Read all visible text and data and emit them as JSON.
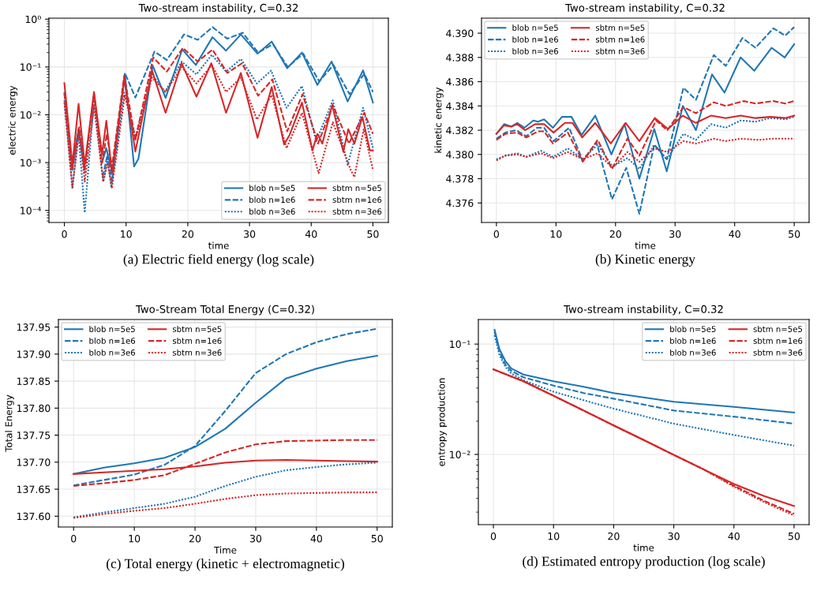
{
  "chart_data": [
    {
      "type": "line",
      "title": "Two-stream instability, C=0.32",
      "xlabel": "time",
      "ylabel": "electric energy",
      "annotations": [
        "(a) Electric field energy (log scale)"
      ],
      "log": "y",
      "grid": true,
      "legend": "lower right",
      "xlim": [
        -2.5,
        52.5
      ],
      "xticks": [
        0,
        10,
        20,
        30,
        40,
        50
      ],
      "ylim": [
        5.6e-05,
        1.05
      ],
      "yticks": [
        {
          "value": 0.0001,
          "label": "10⁻⁴"
        },
        {
          "value": 0.001,
          "label": "10⁻³"
        },
        {
          "value": 0.01,
          "label": "10⁻²"
        },
        {
          "value": 0.1,
          "label": "10⁻¹"
        },
        {
          "value": 1,
          "label": "10⁰"
        }
      ],
      "series": [
        {
          "name": "blob n=5e5",
          "color": "#1f77b4",
          "line_style": "solid",
          "x": [
            1.3,
            2.3,
            3.2,
            4.8,
            6.1,
            6.8,
            7.8,
            9.8,
            11.3,
            12,
            14.3,
            16.4,
            19.1,
            21.3,
            24,
            26.2,
            28.6,
            31.3,
            33.6,
            36.1,
            38.5,
            41,
            43.3,
            45.9,
            48.4,
            50
          ],
          "values": [
            0.0008,
            0.005,
            0.0008,
            null,
            0.001,
            0.002,
            0.0006,
            0.072,
            0.00083,
            0.0012,
            0.108,
            0.0226,
            0.234,
            0.11,
            0.42,
            0.22,
            0.48,
            0.19,
            0.34,
            0.094,
            0.2,
            0.042,
            0.13,
            0.019,
            0.085,
            0.018
          ]
        },
        {
          "name": "blob n=1e6",
          "color": "#1f77b4",
          "line_style": "dashed",
          "x": [
            0,
            1.3,
            2.3,
            3.3,
            4.8,
            6.2,
            7,
            7.7,
            9.8,
            11.5,
            14.6,
            16.6,
            19.4,
            21.6,
            24,
            26.4,
            28.9,
            31.4,
            33.8,
            36.2,
            38.7,
            41.3,
            43.6,
            46.2,
            48.6,
            50
          ],
          "values": [
            0.03,
            0.0007,
            0.005,
            0.0006,
            null,
            0.0005,
            0.0015,
            0.0004,
            0.075,
            0.023,
            0.21,
            0.14,
            0.48,
            0.37,
            0.68,
            0.39,
            0.52,
            0.2,
            0.3,
            0.1,
            0.19,
            0.05,
            0.11,
            0.027,
            0.072,
            0.03
          ]
        },
        {
          "name": "blob n=3e6",
          "color": "#1f77b4",
          "line_style": "dotted",
          "x": [
            0,
            1.3,
            2.3,
            3.3,
            4.8,
            6.3,
            7,
            7.6,
            9.7,
            11.5,
            14.2,
            16.3,
            19,
            21.4,
            23.9,
            26.2,
            28.6,
            31.2,
            33.5,
            36,
            38.5,
            40.8,
            43.5,
            45.9,
            48.4,
            50
          ],
          "values": [
            0.02,
            0.0003,
            0.004,
            9e-05,
            0.02,
            0.0004,
            0.0012,
            0.0003,
            0.029,
            0.0033,
            0.07,
            0.03,
            0.13,
            0.07,
            0.18,
            0.08,
            0.147,
            0.045,
            0.084,
            0.014,
            0.04,
            0.0028,
            0.02,
            0.0009,
            0.014,
            0.002
          ]
        },
        {
          "name": "sbtm n=5e5",
          "color": "#d62728",
          "line_style": "solid",
          "x": [
            0,
            1.3,
            2.3,
            3.3,
            4.8,
            6.1,
            6.8,
            7.7,
            9.7,
            11.5,
            14.2,
            16.4,
            19,
            21.4,
            23.8,
            26.2,
            28.6,
            31.3,
            33.6,
            35.6,
            36.5,
            38.5,
            40.2,
            41,
            41.8,
            43.4,
            45.2,
            46,
            47,
            48.3,
            49.5,
            50
          ],
          "values": [
            0.046,
            0.0009,
            0.017,
            0.0009,
            0.03,
            0.0015,
            0.0075,
            0.0006,
            0.055,
            0.0017,
            0.085,
            0.011,
            0.12,
            0.024,
            0.12,
            0.011,
            0.075,
            0.0033,
            0.038,
            0.0024,
            0.0038,
            0.018,
            0.0018,
            0.004,
            0.0025,
            0.016,
            0.0017,
            0.005,
            0.0025,
            0.009,
            0.0018,
            0.0018
          ]
        },
        {
          "name": "sbtm n=1e6",
          "color": "#d62728",
          "line_style": "dashed",
          "x": [
            0,
            1.2,
            2.4,
            3.3,
            4.8,
            6.1,
            6.9,
            7.7,
            9.7,
            11.5,
            14.4,
            16.6,
            19.2,
            21.6,
            24,
            26.4,
            28.8,
            31.4,
            33.7,
            36.1,
            38.6,
            41.1,
            43.5,
            46.1,
            48.6,
            50
          ],
          "values": [
            0.028,
            0.0007,
            0.0055,
            0.0007,
            0.028,
            0.001,
            0.004,
            0.0008,
            0.065,
            0.003,
            0.158,
            0.08,
            0.25,
            0.13,
            0.23,
            0.075,
            0.12,
            0.025,
            0.055,
            0.0045,
            0.027,
            0.0025,
            0.016,
            0.0025,
            0.011,
            0.004
          ]
        },
        {
          "name": "sbtm n=3e6",
          "color": "#d62728",
          "line_style": "dotted",
          "x": [
            0,
            1.3,
            2.4,
            3.3,
            4.8,
            6.3,
            7,
            7.7,
            9.8,
            11.5,
            14.2,
            16.4,
            19,
            21.4,
            23.9,
            26.2,
            28.6,
            31.2,
            33.6,
            36,
            38.5,
            41.2,
            43.5,
            46.4,
            47,
            48.5,
            50
          ],
          "values": [
            0.018,
            0.0003,
            0.005,
            0.0004,
            0.015,
            0.0004,
            0.001,
            0.0003,
            0.026,
            0.003,
            0.06,
            0.03,
            0.1,
            0.045,
            0.11,
            0.03,
            0.06,
            0.008,
            0.026,
            0.002,
            0.011,
            0.0006,
            0.007,
            0.0007,
            0.0005,
            0.005,
            0.0007
          ]
        }
      ]
    },
    {
      "type": "line",
      "title": "Two-stream instability, C=0.32",
      "xlabel": "time",
      "ylabel": "kinetic energy",
      "annotations": [
        "(b) Kinetic energy"
      ],
      "grid": true,
      "legend": "upper left",
      "xlim": [
        -2.5,
        52.5
      ],
      "xticks": [
        0,
        10,
        20,
        30,
        40,
        50
      ],
      "ylim": [
        4.37439,
        4.39124
      ],
      "yticks": [
        {
          "value": 4.376,
          "label": "4.376"
        },
        {
          "value": 4.378,
          "label": "4.378"
        },
        {
          "value": 4.38,
          "label": "4.380"
        },
        {
          "value": 4.382,
          "label": "4.382"
        },
        {
          "value": 4.384,
          "label": "4.384"
        },
        {
          "value": 4.386,
          "label": "4.386"
        },
        {
          "value": 4.388,
          "label": "4.388"
        },
        {
          "value": 4.39,
          "label": "4.390"
        }
      ],
      "series": [
        {
          "name": "blob n=5e5",
          "color": "#1f77b4",
          "line_style": "solid",
          "x": [
            0,
            1.3,
            2.5,
            3.5,
            4.7,
            6.2,
            7,
            8,
            9.5,
            11,
            12.6,
            14.3,
            16.6,
            19.3,
            21.5,
            24,
            26.5,
            28.6,
            31.3,
            33.5,
            36.2,
            38.3,
            41,
            43.3,
            46.2,
            48.4,
            50
          ],
          "values": [
            4.3817,
            4.3825,
            4.3823,
            4.3826,
            4.3822,
            4.3828,
            4.3827,
            4.3829,
            4.3822,
            4.3831,
            4.3831,
            4.3816,
            4.3832,
            4.38,
            4.3825,
            4.378,
            4.3821,
            4.3786,
            4.384,
            4.382,
            4.3866,
            4.3851,
            4.388,
            4.3869,
            4.3888,
            4.388,
            4.3891
          ]
        },
        {
          "name": "blob n=1e6",
          "color": "#1f77b4",
          "line_style": "dashed",
          "x": [
            0,
            1.5,
            3.3,
            5,
            6.8,
            8,
            9.6,
            12.2,
            14.5,
            16.8,
            19.4,
            21.8,
            24,
            26.5,
            28.6,
            31.4,
            33.5,
            36.5,
            38.5,
            41.3,
            43.5,
            46.5,
            48.5,
            50
          ],
          "values": [
            4.3813,
            4.3818,
            4.382,
            4.3815,
            4.3822,
            4.3822,
            4.3811,
            4.3822,
            4.3795,
            4.381,
            4.3763,
            4.3789,
            4.3751,
            4.3808,
            4.3796,
            4.3855,
            4.3845,
            4.3882,
            4.3873,
            4.3896,
            4.3888,
            4.3904,
            4.3898,
            4.3905
          ]
        },
        {
          "name": "blob n=3e6",
          "color": "#1f77b4",
          "line_style": "dotted",
          "x": [
            0,
            1.5,
            3.5,
            5,
            7.5,
            9.5,
            12,
            14.5,
            17,
            19.5,
            22,
            24,
            26.5,
            28.6,
            31.4,
            33.5,
            36,
            38.5,
            41,
            43.5,
            46,
            48.5,
            50
          ],
          "values": [
            4.3796,
            4.3799,
            4.3801,
            4.3798,
            4.3803,
            4.3798,
            4.3805,
            4.3796,
            4.3808,
            4.379,
            4.3797,
            4.3788,
            4.3808,
            4.3796,
            4.3817,
            4.3812,
            4.3825,
            4.3822,
            4.3828,
            4.3827,
            4.383,
            4.3829,
            4.3831
          ]
        },
        {
          "name": "sbtm n=5e5",
          "color": "#d62728",
          "line_style": "solid",
          "x": [
            0,
            1.3,
            2.5,
            3.5,
            4.8,
            6.5,
            8,
            9.6,
            11.5,
            12.8,
            14.4,
            16.6,
            19.2,
            21.7,
            24,
            26.6,
            28.8,
            31.3,
            33.5,
            36,
            38.5,
            41,
            43.5,
            46,
            48.5,
            50
          ],
          "values": [
            4.3817,
            4.3824,
            4.3823,
            4.3825,
            4.382,
            4.3825,
            4.3825,
            4.3818,
            4.3826,
            4.3826,
            4.3814,
            4.3826,
            4.3809,
            4.3826,
            4.3811,
            4.383,
            4.3821,
            4.3832,
            4.3826,
            4.3832,
            4.383,
            4.3832,
            4.383,
            4.3831,
            4.383,
            4.3832
          ]
        },
        {
          "name": "sbtm n=1e6",
          "color": "#d62728",
          "line_style": "dashed",
          "x": [
            0,
            1.5,
            3.5,
            5,
            7,
            8,
            9.5,
            12,
            14.5,
            17,
            19.4,
            22,
            24,
            26.8,
            28.7,
            31.4,
            33.5,
            36.5,
            38.5,
            41.5,
            43.5,
            46.5,
            48.5,
            50
          ],
          "values": [
            4.3812,
            4.3817,
            4.3818,
            4.3814,
            4.3819,
            4.3819,
            4.3809,
            4.3818,
            4.3794,
            4.3812,
            4.3788,
            4.3813,
            4.3799,
            4.3828,
            4.382,
            4.3839,
            4.3834,
            4.3843,
            4.384,
            4.3844,
            4.3842,
            4.3844,
            4.3842,
            4.3844
          ]
        },
        {
          "name": "sbtm n=3e6",
          "color": "#d62728",
          "line_style": "dotted",
          "x": [
            0,
            1.5,
            3.5,
            5,
            7.5,
            9.5,
            12,
            14.5,
            17,
            19.5,
            22,
            24,
            26.5,
            28.7,
            31.4,
            33.5,
            36.5,
            38.5,
            41,
            44,
            46.5,
            50
          ],
          "values": [
            4.3795,
            4.3799,
            4.38,
            4.3798,
            4.3801,
            4.3797,
            4.3802,
            4.3796,
            4.3801,
            4.3789,
            4.3802,
            4.3794,
            4.3805,
            4.3802,
            4.3811,
            4.3809,
            4.3813,
            4.3811,
            4.3813,
            4.3812,
            4.3813,
            4.3813
          ]
        }
      ]
    },
    {
      "type": "line",
      "title": "Two-Stream Total Energy (C=0.32)",
      "xlabel": "Time",
      "ylabel": "Total Energy",
      "annotations": [
        "(c) Total energy (kinetic + electromagnetic)"
      ],
      "grid": true,
      "legend": "upper left",
      "xlim": [
        -2.5,
        52.5
      ],
      "xticks": [
        0,
        10,
        20,
        30,
        40,
        50
      ],
      "ylim": [
        137.58,
        137.964
      ],
      "yticks": [
        {
          "value": 137.6,
          "label": "137.60"
        },
        {
          "value": 137.65,
          "label": "137.65"
        },
        {
          "value": 137.7,
          "label": "137.70"
        },
        {
          "value": 137.75,
          "label": "137.75"
        },
        {
          "value": 137.8,
          "label": "137.80"
        },
        {
          "value": 137.85,
          "label": "137.85"
        },
        {
          "value": 137.9,
          "label": "137.90"
        },
        {
          "value": 137.95,
          "label": "137.95"
        }
      ],
      "series": [
        {
          "name": "blob n=5e5",
          "color": "#1f77b4",
          "line_style": "solid",
          "x": [
            0,
            5,
            10,
            15,
            20,
            25,
            30,
            35,
            40,
            45,
            50
          ],
          "values": [
            137.678,
            137.69,
            137.698,
            137.708,
            137.728,
            137.762,
            137.81,
            137.855,
            137.873,
            137.887,
            137.897
          ]
        },
        {
          "name": "blob n=1e6",
          "color": "#1f77b4",
          "line_style": "dashed",
          "x": [
            0,
            5,
            10,
            15,
            20,
            25,
            30,
            35,
            40,
            45,
            50
          ],
          "values": [
            137.657,
            137.667,
            137.677,
            137.695,
            137.73,
            137.795,
            137.865,
            137.9,
            137.922,
            137.937,
            137.947
          ]
        },
        {
          "name": "blob n=3e6",
          "color": "#1f77b4",
          "line_style": "dotted",
          "x": [
            0,
            5,
            10,
            15,
            20,
            25,
            30,
            35,
            40,
            45,
            50
          ],
          "values": [
            137.598,
            137.607,
            137.615,
            137.623,
            137.636,
            137.656,
            137.673,
            137.685,
            137.691,
            137.696,
            137.699
          ]
        },
        {
          "name": "sbtm n=5e5",
          "color": "#d62728",
          "line_style": "solid",
          "x": [
            0,
            5,
            10,
            15,
            20,
            25,
            30,
            35,
            40,
            45,
            50
          ],
          "values": [
            137.678,
            137.681,
            137.684,
            137.687,
            137.692,
            137.699,
            137.703,
            137.704,
            137.703,
            137.702,
            137.701
          ]
        },
        {
          "name": "sbtm n=1e6",
          "color": "#d62728",
          "line_style": "dashed",
          "x": [
            0,
            5,
            10,
            15,
            20,
            25,
            30,
            35,
            40,
            45,
            50
          ],
          "values": [
            137.656,
            137.661,
            137.667,
            137.676,
            137.697,
            137.718,
            137.733,
            137.739,
            137.74,
            137.741,
            137.741
          ]
        },
        {
          "name": "sbtm n=3e6",
          "color": "#d62728",
          "line_style": "dotted",
          "x": [
            0,
            5,
            10,
            15,
            20,
            25,
            30,
            35,
            40,
            45,
            50
          ],
          "values": [
            137.597,
            137.604,
            137.61,
            137.615,
            137.623,
            137.632,
            137.639,
            137.642,
            137.643,
            137.644,
            137.644
          ]
        }
      ]
    },
    {
      "type": "line",
      "title": "Two-stream instability, C=0.32",
      "xlabel": "time",
      "ylabel": "entropy production",
      "annotations": [
        "(d) Estimated entropy production (log scale)"
      ],
      "log": "y",
      "grid": true,
      "legend": "upper right",
      "xlim": [
        -2.5,
        52.5
      ],
      "xticks": [
        0,
        10,
        20,
        30,
        40,
        50
      ],
      "ylim": [
        0.00231,
        0.167
      ],
      "yticks": [
        {
          "value": 0.01,
          "label": "10⁻²"
        },
        {
          "value": 0.1,
          "label": "10⁻¹"
        }
      ],
      "series": [
        {
          "name": "blob n=5e5",
          "color": "#1f77b4",
          "line_style": "solid",
          "x": [
            0.2,
            1,
            2,
            3,
            5,
            10,
            15,
            20,
            30,
            40,
            50
          ],
          "values": [
            0.135,
            0.09,
            0.07,
            0.06,
            0.053,
            0.046,
            0.041,
            0.036,
            0.03,
            0.027,
            0.024
          ]
        },
        {
          "name": "blob n=1e6",
          "color": "#1f77b4",
          "line_style": "dashed",
          "x": [
            0.2,
            1,
            2,
            3,
            5,
            10,
            15,
            20,
            30,
            40,
            50
          ],
          "values": [
            0.13,
            0.085,
            0.065,
            0.057,
            0.05,
            0.042,
            0.036,
            0.032,
            0.025,
            0.022,
            0.019
          ]
        },
        {
          "name": "blob n=3e6",
          "color": "#1f77b4",
          "line_style": "dotted",
          "x": [
            0.2,
            1,
            2,
            3,
            5,
            10,
            15,
            20,
            30,
            40,
            50
          ],
          "values": [
            0.12,
            0.08,
            0.062,
            0.054,
            0.047,
            0.037,
            0.031,
            0.026,
            0.019,
            0.015,
            0.012
          ]
        },
        {
          "name": "sbtm n=5e5",
          "color": "#d62728",
          "line_style": "solid",
          "x": [
            0,
            5,
            10,
            15,
            20,
            25,
            30,
            35,
            40,
            45,
            50
          ],
          "values": [
            0.059,
            0.046,
            0.034,
            0.025,
            0.0183,
            0.0135,
            0.0099,
            0.0073,
            0.0054,
            0.0042,
            0.0034
          ]
        },
        {
          "name": "sbtm n=1e6",
          "color": "#d62728",
          "line_style": "dashed",
          "x": [
            0,
            5,
            10,
            15,
            20,
            25,
            30,
            35,
            40,
            45,
            50
          ],
          "values": [
            0.059,
            0.046,
            0.034,
            0.025,
            0.0183,
            0.0135,
            0.0099,
            0.0073,
            0.0052,
            0.0038,
            0.0029
          ]
        },
        {
          "name": "sbtm n=3e6",
          "color": "#d62728",
          "line_style": "dotted",
          "x": [
            0,
            5,
            10,
            15,
            20,
            25,
            30,
            35,
            40,
            45,
            50
          ],
          "values": [
            0.059,
            0.046,
            0.034,
            0.025,
            0.0183,
            0.0135,
            0.0099,
            0.0073,
            0.0051,
            0.0037,
            0.0028
          ]
        }
      ]
    }
  ]
}
